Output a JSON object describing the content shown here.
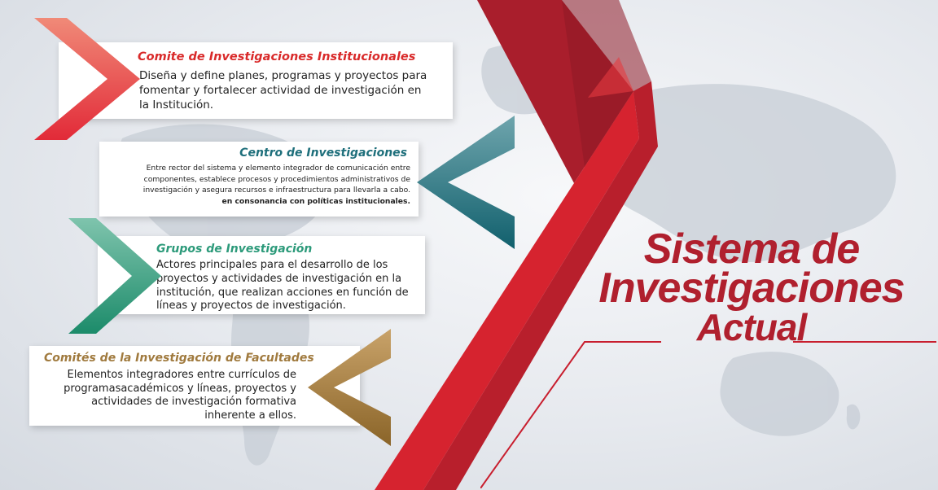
{
  "heading": {
    "line1": "Sistema de",
    "line2": "Investigaciones",
    "line3": "Actual"
  },
  "colors": {
    "accent_red": "#c81e2e",
    "comite": "#e3322f",
    "centro": "#1e6f7b",
    "grupos": "#2c9a7a",
    "facultades": "#a07a3e"
  },
  "cards": [
    {
      "title": "Comite de Investigaciones Institucionales",
      "desc": "Diseña y define planes, programas y proyectos para fomentar y fortalecer actividad de investigación en la Institución."
    },
    {
      "title": "Centro de Investigaciones",
      "desc": "Entre rector del sistema y elemento  integrador de comunicación entre componentes, establece procesos y procedimientos administrativos de investigación y asegura recursos e infraestructura para llevarla a cabo.",
      "desc_bold": "en consonancia con políticas institucionales."
    },
    {
      "title": "Grupos de Investigación",
      "desc": "Actores principales para el desarrollo de los proyectos y actividades de investigación en la institución, que realizan acciones en función de líneas y proyectos de investigación."
    },
    {
      "title": "Comités de la Investigación de Facultades",
      "desc": "Elementos integradores entre currículos de programasacadémicos y líneas, proyectos y actividades de investigación formativa inherente a ellos."
    }
  ]
}
